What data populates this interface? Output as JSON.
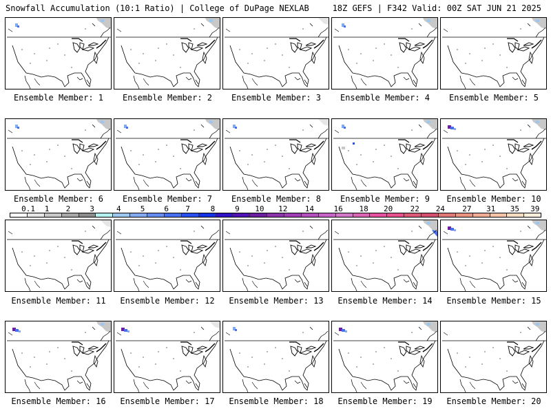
{
  "header": {
    "left": "Snowfall Accumulation (10:1 Ratio) | College of DuPage NEXLAB",
    "right": "18Z GEFS | F342 Valid: 00Z SAT JUN 21 2025"
  },
  "panels": [
    {
      "caption": "Ensemble Member: 1",
      "snow": [
        "nw-blue",
        "ne-gray"
      ]
    },
    {
      "caption": "Ensemble Member: 2",
      "snow": [
        "ne-gray"
      ]
    },
    {
      "caption": "Ensemble Member: 3",
      "snow": [
        "ne-gray-light"
      ]
    },
    {
      "caption": "Ensemble Member: 4",
      "snow": [
        "nw-blue",
        "ne-gray"
      ]
    },
    {
      "caption": "Ensemble Member: 5",
      "snow": [
        "ne-gray"
      ]
    },
    {
      "caption": "Ensemble Member: 6",
      "snow": [
        "nw-blue",
        "ne-gray"
      ]
    },
    {
      "caption": "Ensemble Member: 7",
      "snow": [
        "nw-blue",
        "ne-gray"
      ]
    },
    {
      "caption": "Ensemble Member: 8",
      "snow": [
        "nw-blue",
        "ne-gray-light"
      ]
    },
    {
      "caption": "Ensemble Member: 9",
      "snow": [
        "nw-blue",
        "ne-gray",
        "center-gray"
      ]
    },
    {
      "caption": "Ensemble Member: 10",
      "snow": [
        "nw-purple",
        "ne-gray"
      ]
    },
    {
      "caption": "Ensemble Member: 11",
      "snow": [
        "ne-gray-light"
      ]
    },
    {
      "caption": "Ensemble Member: 12",
      "snow": []
    },
    {
      "caption": "Ensemble Member: 13",
      "snow": []
    },
    {
      "caption": "Ensemble Member: 14",
      "snow": [
        "ne-blue",
        "ne-gray"
      ]
    },
    {
      "caption": "Ensemble Member: 15",
      "snow": [
        "nw-purple",
        "ne-gray"
      ]
    },
    {
      "caption": "Ensemble Member: 16",
      "snow": [
        "nw-purple",
        "ne-gray"
      ]
    },
    {
      "caption": "Ensemble Member: 17",
      "snow": [
        "nw-purple",
        "ne-gray-light"
      ]
    },
    {
      "caption": "Ensemble Member: 18",
      "snow": [
        "nw-blue"
      ]
    },
    {
      "caption": "Ensemble Member: 19",
      "snow": [
        "nw-purple",
        "ne-gray"
      ]
    },
    {
      "caption": "Ensemble Member: 20",
      "snow": [
        "ne-gray"
      ]
    }
  ],
  "scale": {
    "labels": [
      "0.1",
      "1",
      "2",
      "3",
      "4",
      "5",
      "6",
      "7",
      "8",
      "9",
      "10",
      "12",
      "14",
      "16",
      "18",
      "20",
      "22",
      "24",
      "27",
      "31",
      "35",
      "39"
    ],
    "colors": [
      "#ffffff",
      "#e6e6e6",
      "#c8c8c8",
      "#a8a8a8",
      "#8c8c8c",
      "#b4f0f0",
      "#9cc8f0",
      "#82aaf0",
      "#648cf0",
      "#4670f0",
      "#2850f0",
      "#1432e6",
      "#3214c8",
      "#5014b4",
      "#6e1ea0",
      "#8c32aa",
      "#a03cb4",
      "#b450be",
      "#c864c8",
      "#d278c8",
      "#dc64b4",
      "#e650a0",
      "#e6508c",
      "#dc5a78",
      "#d2506e",
      "#e07878",
      "#e89480",
      "#f0ac94",
      "#f5c4a8",
      "#fadcc0",
      "#fff0dc"
    ]
  }
}
